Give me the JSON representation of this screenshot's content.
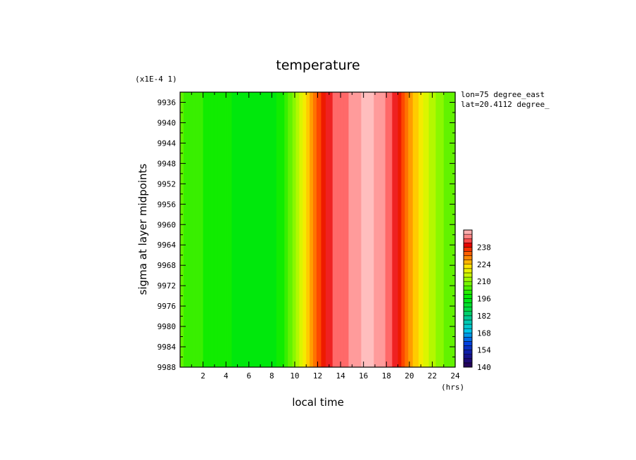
{
  "chart_data": {
    "type": "heatmap",
    "title": "temperature",
    "y_scale_note": "(x1E-4 1)",
    "xlabel": "local time",
    "ylabel": "sigma at layer midpoints",
    "x_units": "(hrs)",
    "annotations": [
      "lon=75 degree_east",
      "lat=20.4112 degree_"
    ],
    "xlim": [
      0,
      24
    ],
    "ylim": [
      9988,
      9934
    ],
    "x_ticks": [
      "2",
      "4",
      "6",
      "8",
      "10",
      "12",
      "14",
      "16",
      "18",
      "20",
      "22",
      "24"
    ],
    "y_ticks": [
      "9936",
      "9940",
      "9944",
      "9948",
      "9952",
      "9956",
      "9960",
      "9964",
      "9968",
      "9972",
      "9976",
      "9980",
      "9984",
      "9988"
    ],
    "colorbar": {
      "min": 140,
      "max": 252,
      "step": 3.5,
      "tick_labels": [
        "140",
        "154",
        "168",
        "182",
        "196",
        "210",
        "224",
        "238"
      ]
    },
    "profile": {
      "description_x_hours": [
        0,
        1,
        2,
        3,
        4,
        5,
        6,
        7,
        8,
        9,
        10,
        11,
        12,
        12.8,
        13.5,
        14.5,
        15.5,
        16.2,
        17.5,
        18.3,
        19,
        20,
        21,
        22,
        23,
        24
      ],
      "temperature": [
        207,
        205,
        203,
        202,
        200,
        199,
        198,
        197,
        198,
        202,
        212,
        224,
        236,
        242,
        246,
        248,
        251,
        253,
        251,
        246,
        242,
        230,
        222,
        215,
        210,
        208
      ]
    }
  }
}
